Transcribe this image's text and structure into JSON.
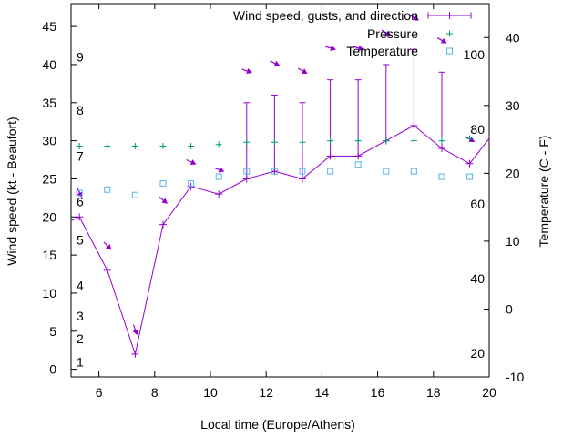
{
  "chart_data": {
    "type": "line",
    "xlabel": "Local time (Europe/Athens)",
    "ylabel_left": "Wind speed (kt - Beaufort)",
    "ylabel_right": "Temperature (C - F)",
    "xlim": [
      5,
      20
    ],
    "ylim_left": [
      -1,
      48
    ],
    "ylim_right": [
      -10,
      45
    ],
    "x_ticks": [
      6,
      8,
      10,
      12,
      14,
      16,
      18,
      20
    ],
    "y_ticks_left": [
      0,
      5,
      10,
      15,
      20,
      25,
      30,
      35,
      40,
      45
    ],
    "y_ticks_right": [
      -10,
      0,
      10,
      20,
      30,
      40
    ],
    "beaufort_labels": [
      {
        "label": "1",
        "y": 1
      },
      {
        "label": "2",
        "y": 4
      },
      {
        "label": "3",
        "y": 7
      },
      {
        "label": "4",
        "y": 11
      },
      {
        "label": "5",
        "y": 17
      },
      {
        "label": "6",
        "y": 22
      },
      {
        "label": "7",
        "y": 28
      },
      {
        "label": "8",
        "y": 34
      },
      {
        "label": "9",
        "y": 41
      }
    ],
    "fahrenheit_labels": [
      {
        "label": "20",
        "y": -6.5
      },
      {
        "label": "40",
        "y": 4.5
      },
      {
        "label": "60",
        "y": 15.5
      },
      {
        "label": "80",
        "y": 26.5
      },
      {
        "label": "100",
        "y": 37.5
      }
    ],
    "legend_position": "top-right",
    "colors": {
      "wind": "#9400d3",
      "pressure": "#009e73",
      "temperature": "#56b4e9",
      "arrow": "#9400d3"
    },
    "series": [
      {
        "name": "Wind speed, gusts, and direction",
        "x": [
          5.3,
          6.3,
          7.3,
          8.3,
          9.3,
          10.3,
          11.3,
          12.3,
          13.3,
          14.3,
          15.3,
          16.3,
          17.3,
          18.3,
          19.3
        ],
        "values": [
          20,
          13,
          2,
          19,
          24,
          23,
          25,
          26,
          25,
          28,
          28,
          30,
          32,
          29,
          27
        ],
        "gusts": [
          null,
          null,
          null,
          null,
          null,
          null,
          35,
          36,
          35,
          38,
          38,
          40,
          42,
          39,
          null
        ],
        "direction_deg": [
          25,
          45,
          20,
          50,
          65,
          70,
          70,
          65,
          60,
          75,
          75,
          60,
          60,
          60,
          60
        ]
      },
      {
        "name": "Pressure",
        "x": [
          5.3,
          6.3,
          7.3,
          8.3,
          9.3,
          10.3,
          11.3,
          12.3,
          13.3,
          14.3,
          15.3,
          16.3,
          17.3,
          18.3,
          19.3
        ],
        "values": [
          29.3,
          29.3,
          29.3,
          29.3,
          29.3,
          29.5,
          29.8,
          29.8,
          29.8,
          30,
          30,
          30,
          30,
          30,
          30.3
        ]
      },
      {
        "name": "Temperature",
        "x": [
          5.3,
          6.3,
          7.3,
          8.3,
          9.3,
          10.3,
          11.3,
          12.3,
          13.3,
          14.3,
          15.3,
          16.3,
          17.3,
          18.3,
          19.3
        ],
        "values": [
          17.1,
          17.6,
          16.8,
          18.5,
          18.5,
          19.5,
          20.3,
          20.3,
          20.3,
          20.3,
          21.3,
          20.3,
          20.3,
          19.5,
          19.5
        ]
      }
    ],
    "wind_extensions": {
      "left_y": 19.5,
      "right_y": 30.3
    }
  }
}
